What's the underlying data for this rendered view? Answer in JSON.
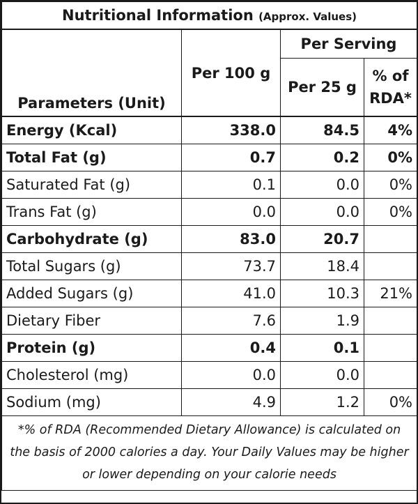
{
  "title": "Nutritional Information",
  "title_sub": "(Approx. Values)",
  "headers": {
    "parameters": "Parameters (Unit)",
    "per100": "Per 100 g",
    "per_serving": "Per Serving",
    "per25": "Per 25 g",
    "rda_line1": "% of",
    "rda_line2": "RDA*"
  },
  "rows": [
    {
      "param": "Energy (Kcal)",
      "per100": "338.0",
      "per25": "84.5",
      "rda": "4%",
      "bold": true
    },
    {
      "param": "Total Fat (g)",
      "per100": "0.7",
      "per25": "0.2",
      "rda": "0%",
      "bold": true
    },
    {
      "param": "Saturated Fat (g)",
      "per100": "0.1",
      "per25": "0.0",
      "rda": "0%",
      "bold": false
    },
    {
      "param": "Trans Fat (g)",
      "per100": "0.0",
      "per25": "0.0",
      "rda": "0%",
      "bold": false
    },
    {
      "param": "Carbohydrate (g)",
      "per100": "83.0",
      "per25": "20.7",
      "rda": "",
      "bold": true
    },
    {
      "param": "Total Sugars (g)",
      "per100": "73.7",
      "per25": "18.4",
      "rda": "",
      "bold": false
    },
    {
      "param": "Added Sugars (g)",
      "per100": "41.0",
      "per25": "10.3",
      "rda": "21%",
      "bold": false
    },
    {
      "param": "Dietary Fiber",
      "per100": "7.6",
      "per25": "1.9",
      "rda": "",
      "bold": false
    },
    {
      "param": "Protein (g)",
      "per100": "0.4",
      "per25": "0.1",
      "rda": "",
      "bold": true
    },
    {
      "param": "Cholesterol (mg)",
      "per100": "0.0",
      "per25": "0.0",
      "rda": "",
      "bold": false
    },
    {
      "param": "Sodium (mg)",
      "per100": "4.9",
      "per25": "1.2",
      "rda": "0%",
      "bold": false
    }
  ],
  "footnote": "*% of RDA (Recommended Dietary Allowance) is calculated on the basis of 2000 calories a day. Your Daily Values may be higher or lower depending on your calorie needs"
}
